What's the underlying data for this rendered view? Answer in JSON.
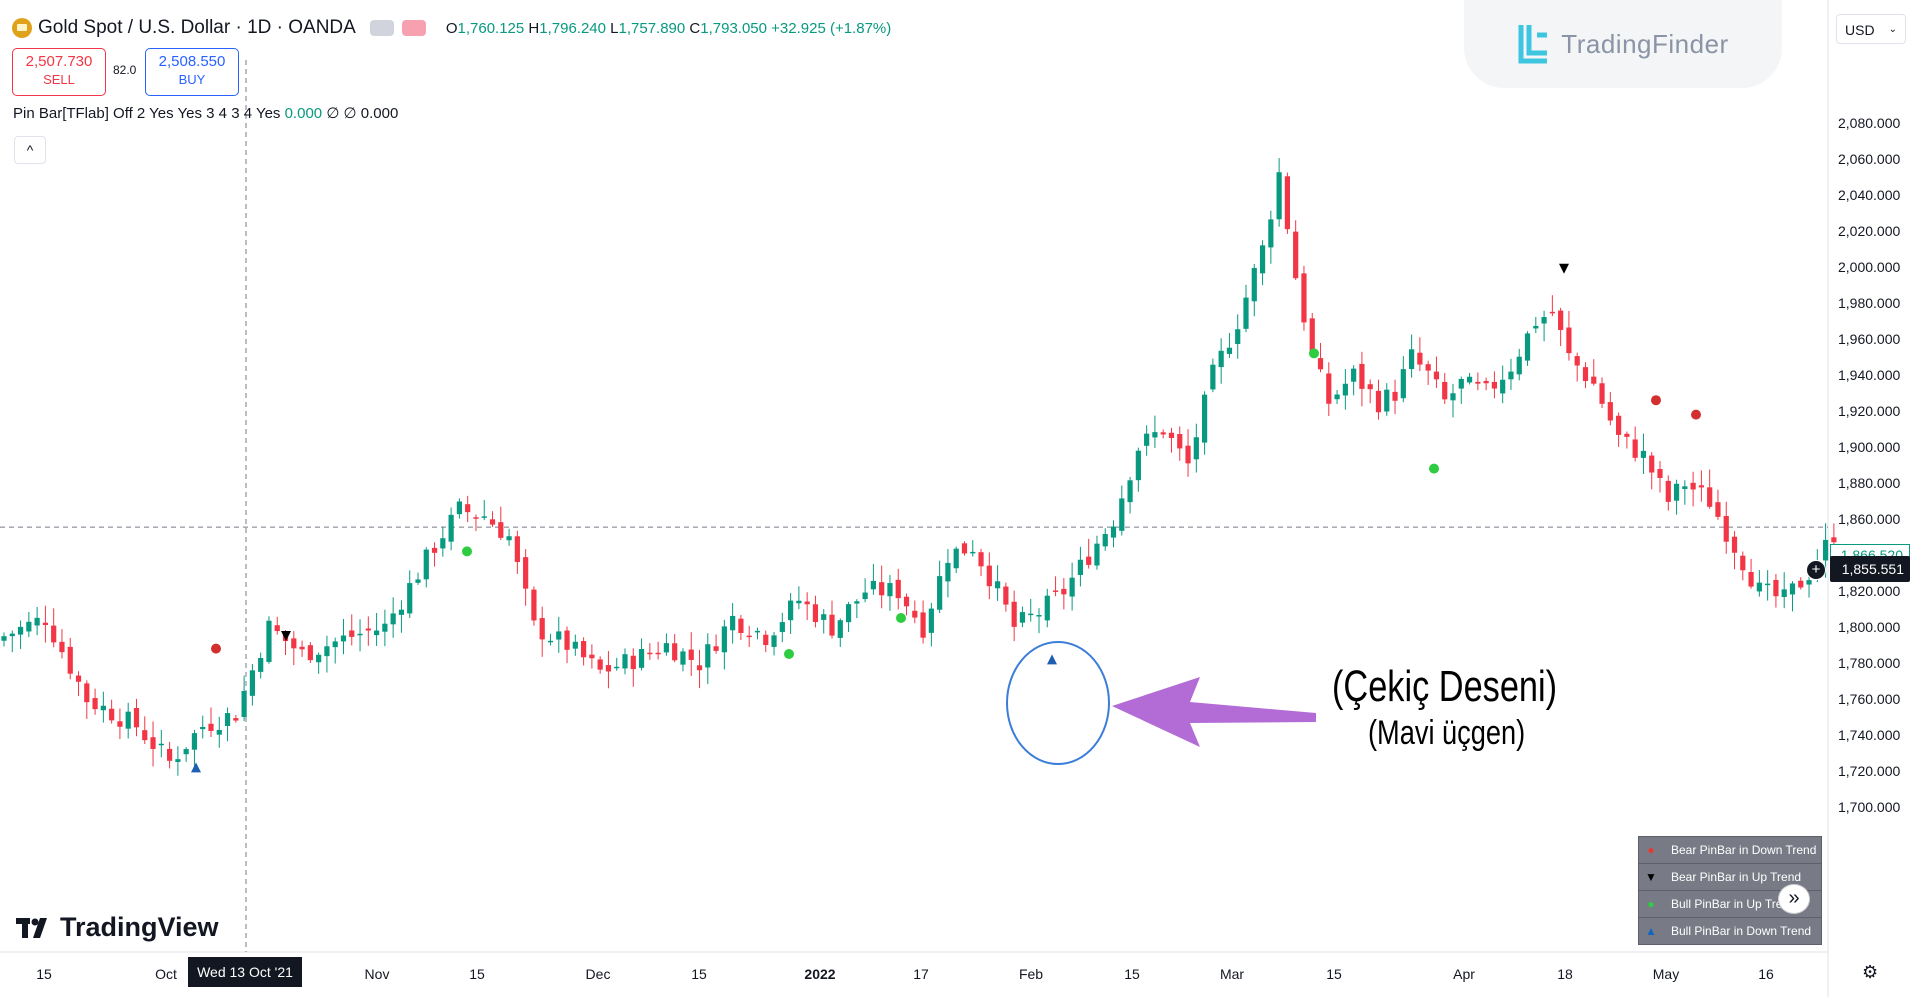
{
  "header": {
    "symbol": "Gold Spot / U.S. Dollar · 1D · OANDA",
    "open_label": "O",
    "open": "1,760.125",
    "high_label": "H",
    "high": "1,796.240",
    "low_label": "L",
    "low": "1,757.890",
    "close_label": "C",
    "close": "1,793.050",
    "change": "+32.925 (+1.87%)"
  },
  "trade": {
    "sell_price": "2,507.730",
    "sell_label": "SELL",
    "spread": "82.0",
    "buy_price": "2,508.550",
    "buy_label": "BUY"
  },
  "indicator": {
    "name": "Pin Bar[TFlab] Off 2 Yes Yes 3 4 3 4 Yes",
    "v1": "0.000",
    "v2": "∅ ∅ 0.000"
  },
  "collapse_glyph": "^",
  "watermark": "TradingFinder",
  "currency": "USD",
  "brand": "TradingView",
  "price_axis": [
    "2,080.000",
    "2,060.000",
    "2,040.000",
    "2,020.000",
    "2,000.000",
    "1,980.000",
    "1,960.000",
    "1,940.000",
    "1,920.000",
    "1,900.000",
    "1,880.000",
    "1,860.000",
    "1,840.000",
    "1,820.000",
    "1,800.000",
    "1,780.000",
    "1,760.000",
    "1,740.000",
    "1,720.000",
    "1,700.000"
  ],
  "price_marker_high": "1,866.520",
  "price_marker_cursor": "1,855.551",
  "crosshair_date": "Wed 13 Oct '21",
  "time_axis": [
    {
      "label": "15",
      "bold": false
    },
    {
      "label": "Oct",
      "bold": false
    },
    {
      "label": "Nov",
      "bold": false
    },
    {
      "label": "15",
      "bold": false
    },
    {
      "label": "Dec",
      "bold": false
    },
    {
      "label": "15",
      "bold": false
    },
    {
      "label": "2022",
      "bold": true
    },
    {
      "label": "17",
      "bold": false
    },
    {
      "label": "Feb",
      "bold": false
    },
    {
      "label": "15",
      "bold": false
    },
    {
      "label": "Mar",
      "bold": false
    },
    {
      "label": "15",
      "bold": false
    },
    {
      "label": "Apr",
      "bold": false
    },
    {
      "label": "18",
      "bold": false
    },
    {
      "label": "May",
      "bold": false
    },
    {
      "label": "16",
      "bold": false
    }
  ],
  "annotation": {
    "title": "(Çekiç Deseni)",
    "subtitle": "(Mavi üçgen)"
  },
  "legend": [
    {
      "symbol": "●",
      "color": "#e53935",
      "text": "Bear PinBar in Down Trend"
    },
    {
      "symbol": "▼",
      "color": "#000000",
      "text": "Bear PinBar in Up Trend"
    },
    {
      "symbol": "●",
      "color": "#2ecc40",
      "text": "Bull PinBar in Up Trend"
    },
    {
      "symbol": "▲",
      "color": "#1565c0",
      "text": "Bull PinBar in Down Trend"
    }
  ],
  "colors": {
    "up": "#089981",
    "down": "#f23645",
    "marker_blue": "#1e5fb4",
    "marker_red": "#d32f2f",
    "marker_green": "#2ecc40",
    "arrow": "#b36bd6",
    "circle": "#3b7dd8"
  },
  "chart_data": {
    "type": "candlestick",
    "title": "Gold Spot / U.S. Dollar · 1D · OANDA",
    "ylim": [
      1690,
      2092
    ],
    "y_ticks": [
      2080,
      2060,
      2040,
      2020,
      2000,
      1980,
      1960,
      1940,
      1920,
      1900,
      1880,
      1860,
      1840,
      1820,
      1800,
      1780,
      1760,
      1740,
      1720,
      1700
    ],
    "x_ticks": [
      "15",
      "Oct",
      "Nov",
      "15",
      "Dec",
      "15",
      "2022",
      "17",
      "Feb",
      "15",
      "Mar",
      "15",
      "Apr",
      "18",
      "May",
      "16"
    ],
    "period": "Sep 2021 – Jun 2022 (daily)",
    "close_path": [
      {
        "i": 0,
        "c": 1795
      },
      {
        "i": 5,
        "c": 1805
      },
      {
        "i": 10,
        "c": 1760
      },
      {
        "i": 16,
        "c": 1745
      },
      {
        "i": 20,
        "c": 1725
      },
      {
        "i": 24,
        "c": 1745
      },
      {
        "i": 28,
        "c": 1752
      },
      {
        "i": 32,
        "c": 1800
      },
      {
        "i": 36,
        "c": 1785
      },
      {
        "i": 42,
        "c": 1795
      },
      {
        "i": 46,
        "c": 1800
      },
      {
        "i": 52,
        "c": 1845
      },
      {
        "i": 55,
        "c": 1865
      },
      {
        "i": 58,
        "c": 1862
      },
      {
        "i": 61,
        "c": 1850
      },
      {
        "i": 64,
        "c": 1800
      },
      {
        "i": 68,
        "c": 1790
      },
      {
        "i": 72,
        "c": 1775
      },
      {
        "i": 76,
        "c": 1782
      },
      {
        "i": 80,
        "c": 1790
      },
      {
        "i": 84,
        "c": 1780
      },
      {
        "i": 88,
        "c": 1805
      },
      {
        "i": 92,
        "c": 1795
      },
      {
        "i": 96,
        "c": 1815
      },
      {
        "i": 100,
        "c": 1800
      },
      {
        "i": 104,
        "c": 1820
      },
      {
        "i": 108,
        "c": 1820
      },
      {
        "i": 111,
        "c": 1800
      },
      {
        "i": 114,
        "c": 1840
      },
      {
        "i": 117,
        "c": 1845
      },
      {
        "i": 120,
        "c": 1820
      },
      {
        "i": 122,
        "c": 1800
      },
      {
        "i": 125,
        "c": 1808
      },
      {
        "i": 128,
        "c": 1820
      },
      {
        "i": 131,
        "c": 1840
      },
      {
        "i": 134,
        "c": 1860
      },
      {
        "i": 137,
        "c": 1900
      },
      {
        "i": 140,
        "c": 1910
      },
      {
        "i": 143,
        "c": 1890
      },
      {
        "i": 146,
        "c": 1940
      },
      {
        "i": 149,
        "c": 1970
      },
      {
        "i": 152,
        "c": 2010
      },
      {
        "i": 154,
        "c": 2052
      },
      {
        "i": 156,
        "c": 1995
      },
      {
        "i": 158,
        "c": 1950
      },
      {
        "i": 160,
        "c": 1925
      },
      {
        "i": 163,
        "c": 1940
      },
      {
        "i": 166,
        "c": 1925
      },
      {
        "i": 168,
        "c": 1930
      },
      {
        "i": 170,
        "c": 1950
      },
      {
        "i": 172,
        "c": 1940
      },
      {
        "i": 174,
        "c": 1925
      },
      {
        "i": 176,
        "c": 1935
      },
      {
        "i": 179,
        "c": 1930
      },
      {
        "i": 182,
        "c": 1945
      },
      {
        "i": 185,
        "c": 1970
      },
      {
        "i": 187,
        "c": 1975
      },
      {
        "i": 189,
        "c": 1950
      },
      {
        "i": 192,
        "c": 1935
      },
      {
        "i": 195,
        "c": 1905
      },
      {
        "i": 198,
        "c": 1895
      },
      {
        "i": 201,
        "c": 1870
      },
      {
        "i": 203,
        "c": 1880
      },
      {
        "i": 206,
        "c": 1870
      },
      {
        "i": 209,
        "c": 1845
      },
      {
        "i": 212,
        "c": 1820
      },
      {
        "i": 215,
        "c": 1815
      },
      {
        "i": 218,
        "c": 1830
      },
      {
        "i": 221,
        "c": 1852
      }
    ],
    "markers": [
      {
        "type": "bull-down-triangle",
        "date": "Sep 29 2021",
        "price": 1722
      },
      {
        "type": "bear-down-dot",
        "date": "Oct 06 2021",
        "price": 1788
      },
      {
        "type": "bear-up-triangle",
        "date": "Oct 14 2021",
        "price": 1795
      },
      {
        "type": "bull-up-dot",
        "date": "Nov 17 2021",
        "price": 1842
      },
      {
        "type": "bull-up-dot",
        "date": "Jan 03 2022",
        "price": 1785
      },
      {
        "type": "bull-up-dot",
        "date": "Jan 14 2022",
        "price": 1805
      },
      {
        "type": "bull-down-triangle",
        "date": "Feb 01 2022",
        "price": 1782
      },
      {
        "type": "bull-up-dot",
        "date": "Mar 09 2022",
        "price": 1952
      },
      {
        "type": "bull-up-dot",
        "date": "Mar 29 2022",
        "price": 1888
      },
      {
        "type": "bear-up-triangle",
        "date": "Apr 18 2022",
        "price": 1999
      },
      {
        "type": "bear-down-dot",
        "date": "May 02 2022",
        "price": 1926
      },
      {
        "type": "bear-down-dot",
        "date": "May 06 2022",
        "price": 1918
      }
    ]
  }
}
